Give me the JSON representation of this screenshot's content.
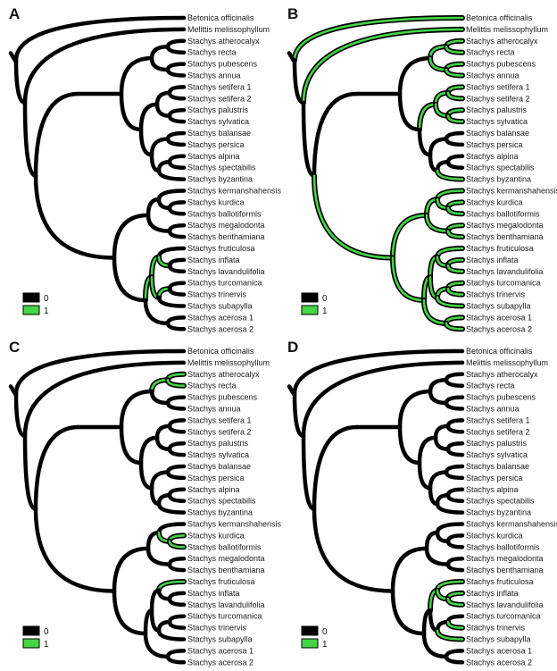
{
  "panels": [
    {
      "letter": "A",
      "legend": {
        "zero": "0",
        "one": "1"
      },
      "green_edges": [
        "subapylla",
        "inflata",
        "lavandulifolia",
        "turcomanica",
        "trinervis",
        "e-inf-lav",
        "e-tur-tri",
        "e-fru-il",
        "e-tt-sub",
        "e-fil-tts"
      ]
    },
    {
      "letter": "B",
      "legend": {
        "zero": "0",
        "one": "1"
      },
      "green_edges": [
        "Betonica officinalis",
        "Melittis melissophyllum",
        "Stachys atherocalyx",
        "Stachys recta",
        "Stachys pubescens",
        "Stachys annua",
        "Stachys setifera 1",
        "Stachys setifera 2",
        "Stachys palustris",
        "Stachys sylvatica",
        "Stachys byzantina",
        "Stachys kermanshahensis",
        "Stachys kurdica",
        "Stachys ballotiformis",
        "Stachys megalodonta",
        "Stachys benthamiana",
        "Stachys fruticulosa",
        "Stachys inflata",
        "Stachys lavandulifolia",
        "Stachys turcomanica",
        "Stachys trinervis",
        "Stachys subapylla",
        "Stachys acerosa 1",
        "Stachys acerosa 2",
        "e-ath-rec",
        "e-pub-ann",
        "e-ar-pa",
        "e-set",
        "e-pal-syl",
        "e-set-ps",
        "e-ap-sp",
        "e-kur-bal",
        "e-meg-ben",
        "e-ker-kb",
        "e-kkb-mb",
        "e-inf-lav",
        "e-tur-tri",
        "e-fru-il",
        "e-tt-sub",
        "e-fil-tts",
        "e-ace",
        "e-ff-ace",
        "e-k-f",
        "e-root-in",
        "e-ms"
      ]
    },
    {
      "letter": "C",
      "legend": {
        "zero": "0",
        "one": "1"
      },
      "green_edges": [
        "Stachys atherocalyx",
        "Stachys recta",
        "Stachys kurdica",
        "Stachys ballotiformis",
        "Stachys fruticulosa",
        "e-ath-rec",
        "e-ar-pa",
        "e-kur-bal"
      ]
    },
    {
      "letter": "D",
      "legend": {
        "zero": "0",
        "one": "1"
      },
      "green_edges": [
        "Stachys inflata",
        "Stachys lavandulifolia",
        "Stachys trinervis",
        "Stachys subapylla",
        "Stachys fruticulosa",
        "e-inf-lav",
        "e-fru-il"
      ]
    }
  ],
  "taxa": [
    "Betonica officinalis",
    "Melittis melissophyllum",
    "Stachys atherocalyx",
    "Stachys recta",
    "Stachys pubescens",
    "Stachys annua",
    "Stachys setifera 1",
    "Stachys setifera 2",
    "Stachys palustris",
    "Stachys sylvatica",
    "Stachys balansae",
    "Stachys persica",
    "Stachys alpina",
    "Stachys spectabilis",
    "Stachys byzantina",
    "Stachys kermanshahensis",
    "Stachys kurdica",
    "Stachys ballotiformis",
    "Stachys megalodonta",
    "Stachys benthamiana",
    "Stachys fruticulosa",
    "Stachys inflata",
    "Stachys lavandulifolia",
    "Stachys turcomanica",
    "Stachys trinervis",
    "Stachys subapylla",
    "Stachys acerosa 1",
    "Stachys acerosa 2"
  ],
  "colors": {
    "state0": "#000000",
    "state1": "#44d644",
    "background": "#ffffff"
  }
}
